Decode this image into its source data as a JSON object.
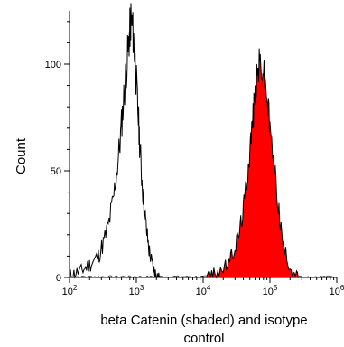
{
  "chart_data": {
    "type": "area",
    "xlabel": [
      "beta Catenin (shaded) and isotype",
      "control"
    ],
    "ylabel": "Count",
    "x_scale": "log10",
    "xlim": [
      100,
      1000000
    ],
    "ylim": [
      0,
      125
    ],
    "x_ticks": [
      {
        "value": 100,
        "base": "10",
        "exp": "2"
      },
      {
        "value": 1000,
        "base": "10",
        "exp": "3"
      },
      {
        "value": 10000,
        "base": "10",
        "exp": "4"
      },
      {
        "value": 100000,
        "base": "10",
        "exp": "5"
      },
      {
        "value": 1000000,
        "base": "10",
        "exp": "6"
      }
    ],
    "y_ticks": [
      0,
      50,
      100
    ],
    "grid": false,
    "colors": {
      "shaded_fill": "#ff0000",
      "line": "#000000",
      "axis": "#000000"
    },
    "series": [
      {
        "style": "outline",
        "x": [
          100,
          120,
          150,
          180,
          220,
          270,
          320,
          380,
          450,
          520,
          580,
          640,
          700,
          760,
          800,
          830,
          870,
          920,
          980,
          1050,
          1120,
          1200,
          1300,
          1420,
          1550,
          1700,
          1850,
          2000,
          2200,
          2500
        ],
        "y": [
          1,
          2,
          3,
          5,
          7,
          10,
          16,
          24,
          36,
          52,
          66,
          82,
          96,
          108,
          116,
          121,
          118,
          110,
          96,
          80,
          64,
          48,
          34,
          22,
          13,
          7,
          3,
          1,
          0.5,
          0
        ]
      },
      {
        "style": "filled",
        "x": [
          8000,
          12000,
          15000,
          20000,
          25000,
          30000,
          35000,
          40000,
          45000,
          50000,
          55000,
          60000,
          65000,
          70000,
          80000,
          90000,
          100000,
          120000,
          140000,
          160000,
          200000,
          250000,
          300000
        ],
        "y": [
          0,
          1,
          2,
          4,
          8,
          14,
          22,
          32,
          46,
          60,
          74,
          86,
          96,
          101,
          97,
          86,
          70,
          48,
          28,
          14,
          5,
          1,
          0
        ]
      }
    ]
  }
}
